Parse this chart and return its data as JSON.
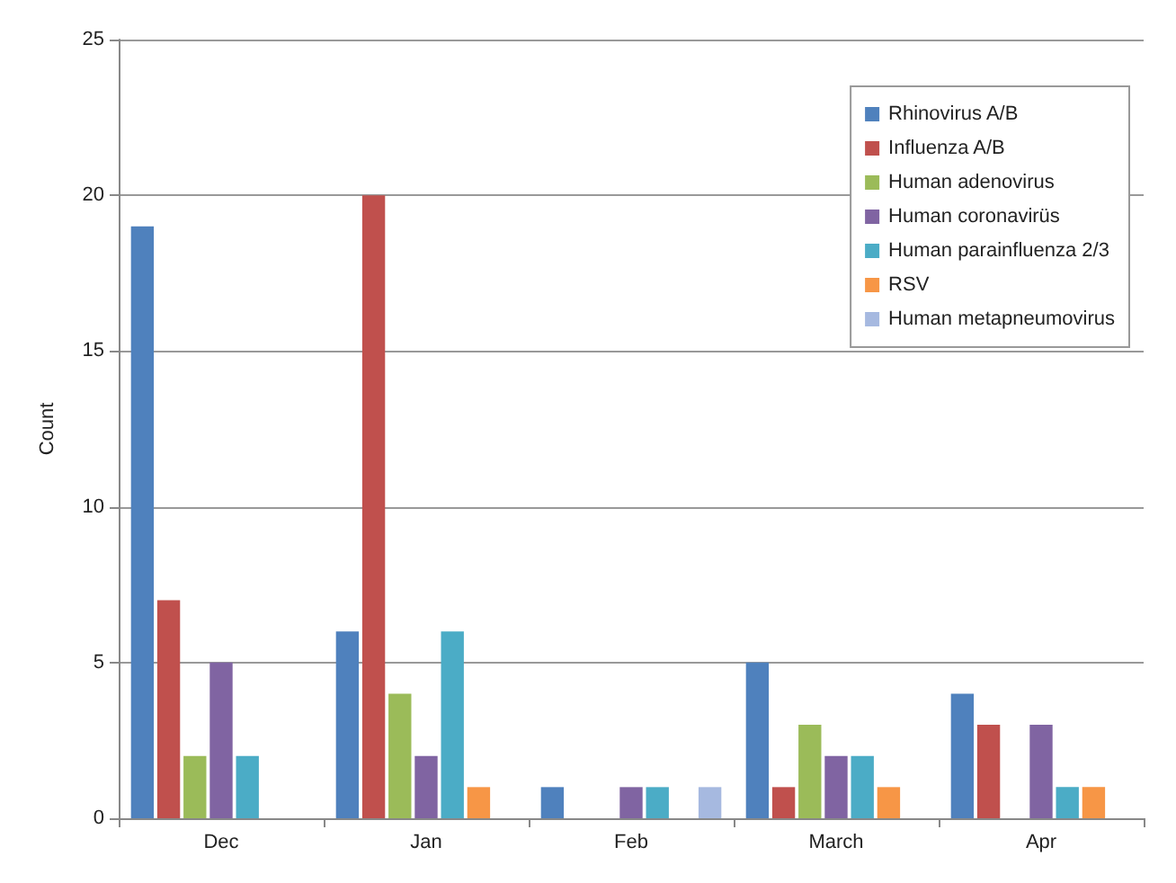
{
  "chart_data": {
    "type": "bar",
    "ylabel": "Count",
    "categories": [
      "Dec",
      "Jan",
      "Feb",
      "March",
      "Apr"
    ],
    "series": [
      {
        "name": "Rhinovirus A/B",
        "color": "#4f81bd",
        "values": [
          19,
          6,
          1,
          5,
          4
        ]
      },
      {
        "name": "Influenza A/B",
        "color": "#c0504d",
        "values": [
          7,
          20,
          0,
          1,
          3
        ]
      },
      {
        "name": "Human adenovirus",
        "color": "#9bbb59",
        "values": [
          2,
          4,
          0,
          3,
          0
        ]
      },
      {
        "name": "Human coronavirüs",
        "color": "#8064a2",
        "values": [
          5,
          2,
          1,
          2,
          3
        ]
      },
      {
        "name": "Human parainfluenza 2/3",
        "color": "#4bacc6",
        "values": [
          2,
          6,
          1,
          2,
          1
        ]
      },
      {
        "name": "RSV",
        "color": "#f79646",
        "values": [
          0,
          1,
          0,
          1,
          1
        ]
      },
      {
        "name": "Human metapneumovirus",
        "color": "#a6b9e0",
        "values": [
          0,
          0,
          1,
          0,
          0
        ]
      }
    ],
    "ylim": [
      0,
      25
    ],
    "yticks": [
      0,
      5,
      10,
      15,
      20,
      25
    ],
    "grid": "y",
    "legend": "top right"
  }
}
